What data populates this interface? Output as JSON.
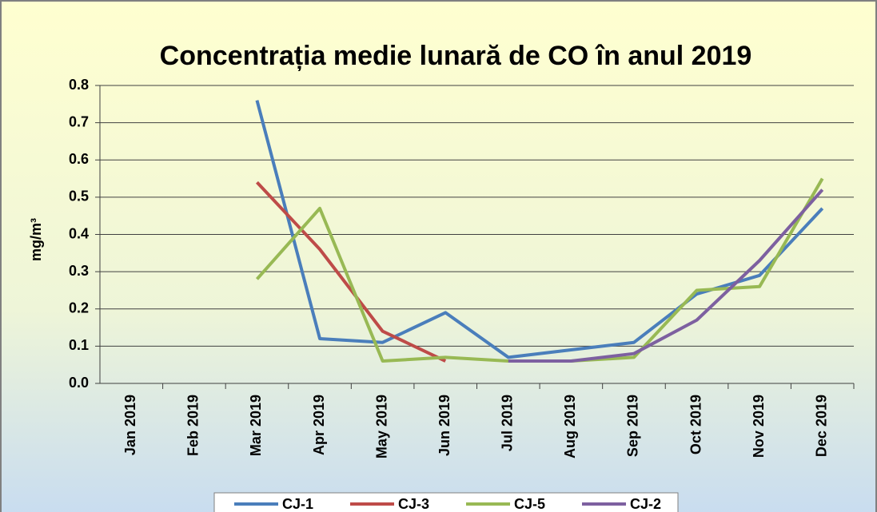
{
  "chart_data": {
    "type": "line",
    "title": "Concentrația medie lunară de CO în anul 2019",
    "y_label": "mg/m³",
    "categories": [
      "Jan 2019",
      "Feb 2019",
      "Mar 2019",
      "Apr 2019",
      "May 2019",
      "Jun 2019",
      "Jul 2019",
      "Aug 2019",
      "Sep 2019",
      "Oct 2019",
      "Nov 2019",
      "Dec 2019"
    ],
    "series": [
      {
        "name": "CJ-1",
        "color": "#4a7ebb",
        "values": [
          null,
          null,
          0.76,
          0.12,
          0.11,
          0.19,
          0.07,
          0.09,
          0.11,
          0.24,
          0.29,
          0.47
        ]
      },
      {
        "name": "CJ-3",
        "color": "#be4b48",
        "values": [
          null,
          null,
          0.54,
          0.36,
          0.14,
          0.06,
          null,
          null,
          null,
          null,
          null,
          null
        ]
      },
      {
        "name": "CJ-5",
        "color": "#98b954",
        "values": [
          null,
          null,
          0.28,
          0.47,
          0.06,
          0.07,
          0.06,
          0.06,
          0.07,
          0.25,
          0.26,
          0.55
        ]
      },
      {
        "name": "CJ-2",
        "color": "#7d60a0",
        "values": [
          null,
          null,
          null,
          null,
          null,
          null,
          0.06,
          0.06,
          0.08,
          0.17,
          0.33,
          0.52
        ]
      }
    ],
    "ylim": [
      0,
      0.8
    ],
    "yticks": [
      {
        "value": 0,
        "label": "0.0"
      },
      0.1,
      0.2,
      0.3,
      0.4,
      0.5,
      0.6,
      0.7,
      0.8
    ],
    "grid": true,
    "legend": "bottom"
  }
}
